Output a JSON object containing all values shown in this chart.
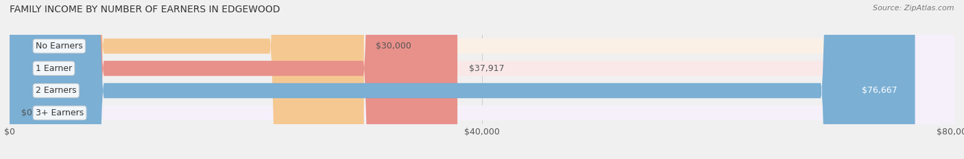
{
  "title": "FAMILY INCOME BY NUMBER OF EARNERS IN EDGEWOOD",
  "source": "Source: ZipAtlas.com",
  "categories": [
    "No Earners",
    "1 Earner",
    "2 Earners",
    "3+ Earners"
  ],
  "values": [
    30000,
    37917,
    76667,
    0
  ],
  "bar_colors": [
    "#f5c892",
    "#e8908a",
    "#7bafd4",
    "#c9aed6"
  ],
  "bg_colors": [
    "#faf0e6",
    "#fae8e8",
    "#e8f0fa",
    "#f5f0fa"
  ],
  "value_labels": [
    "$30,000",
    "$37,917",
    "$76,667",
    "$0"
  ],
  "xlim": [
    0,
    80000
  ],
  "xticks": [
    0,
    40000,
    80000
  ],
  "xticklabels": [
    "$0",
    "$40,000",
    "$80,000"
  ],
  "figsize": [
    14.06,
    2.33
  ],
  "dpi": 100
}
